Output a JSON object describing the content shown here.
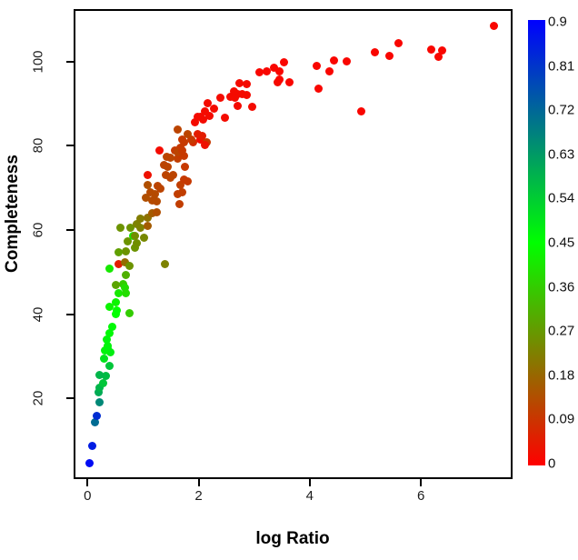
{
  "chart_data": {
    "type": "scatter",
    "title": "",
    "xlabel": "log Ratio",
    "ylabel": "Completeness",
    "xlim": [
      -0.25,
      7.65
    ],
    "ylim": [
      0.8,
      112.5
    ],
    "x_ticks": [
      "0",
      "2",
      "4",
      "6"
    ],
    "x_tick_values": [
      0,
      2,
      4,
      6
    ],
    "y_ticks": [
      "20",
      "40",
      "60",
      "80",
      "100"
    ],
    "y_tick_values": [
      20,
      40,
      60,
      80,
      100
    ],
    "grid": false,
    "legend_position": "right-colorbar",
    "point_format": [
      "log_ratio_x",
      "completeness_y",
      "colorbar_value"
    ],
    "points": [
      [
        0.03,
        4.5,
        0.88
      ],
      [
        0.08,
        8.6,
        0.85
      ],
      [
        0.13,
        14.2,
        0.71
      ],
      [
        0.16,
        15.8,
        0.82
      ],
      [
        0.21,
        19.0,
        0.66
      ],
      [
        0.2,
        21.5,
        0.6
      ],
      [
        0.21,
        22.6,
        0.58
      ],
      [
        0.28,
        23.7,
        0.55
      ],
      [
        0.33,
        25.4,
        0.57
      ],
      [
        0.21,
        25.6,
        0.58
      ],
      [
        0.39,
        27.6,
        0.55
      ],
      [
        0.29,
        29.5,
        0.5
      ],
      [
        0.42,
        31.0,
        0.48
      ],
      [
        0.36,
        31.9,
        0.48
      ],
      [
        0.31,
        31.4,
        0.47
      ],
      [
        0.36,
        32.5,
        0.47
      ],
      [
        0.34,
        34.0,
        0.47
      ],
      [
        0.39,
        35.4,
        0.46
      ],
      [
        0.44,
        36.9,
        0.46
      ],
      [
        0.51,
        40.1,
        0.45
      ],
      [
        0.52,
        40.8,
        0.45
      ],
      [
        0.75,
        40.3,
        0.36
      ],
      [
        0.39,
        41.8,
        0.43
      ],
      [
        0.51,
        42.9,
        0.43
      ],
      [
        0.56,
        44.9,
        0.41
      ],
      [
        0.69,
        44.9,
        0.39
      ],
      [
        0.64,
        47.2,
        0.36
      ],
      [
        0.67,
        46.2,
        0.39
      ],
      [
        0.51,
        47.0,
        0.29
      ],
      [
        0.69,
        49.4,
        0.31
      ],
      [
        0.39,
        50.9,
        0.41
      ],
      [
        0.56,
        51.8,
        0.05
      ],
      [
        0.67,
        52.4,
        0.19
      ],
      [
        0.75,
        51.4,
        0.26
      ],
      [
        1.39,
        51.8,
        0.23
      ],
      [
        0.85,
        55.7,
        0.26
      ],
      [
        0.69,
        55.0,
        0.26
      ],
      [
        0.56,
        54.6,
        0.28
      ],
      [
        0.88,
        56.8,
        0.25
      ],
      [
        0.72,
        57.4,
        0.26
      ],
      [
        0.82,
        58.5,
        0.4
      ],
      [
        0.85,
        58.5,
        0.25
      ],
      [
        1.01,
        58.1,
        0.24
      ],
      [
        0.6,
        60.6,
        0.26
      ],
      [
        0.77,
        60.6,
        0.26
      ],
      [
        0.96,
        60.6,
        0.23
      ],
      [
        1.09,
        60.9,
        0.16
      ],
      [
        0.88,
        61.3,
        0.23
      ],
      [
        0.96,
        62.8,
        0.22
      ],
      [
        1.09,
        63.0,
        0.2
      ],
      [
        1.16,
        63.9,
        0.16
      ],
      [
        1.24,
        64.3,
        0.14
      ],
      [
        1.65,
        66.1,
        0.11
      ],
      [
        1.24,
        66.7,
        0.13
      ],
      [
        1.16,
        67.1,
        0.13
      ],
      [
        1.05,
        67.6,
        0.14
      ],
      [
        1.21,
        68.6,
        0.13
      ],
      [
        1.13,
        68.9,
        0.13
      ],
      [
        1.7,
        68.9,
        0.11
      ],
      [
        1.63,
        68.6,
        0.11
      ],
      [
        1.32,
        69.9,
        0.12
      ],
      [
        1.26,
        70.4,
        0.12
      ],
      [
        1.08,
        70.8,
        0.14
      ],
      [
        1.68,
        70.8,
        0.11
      ],
      [
        1.81,
        71.5,
        0.1
      ],
      [
        1.73,
        71.9,
        0.1
      ],
      [
        1.49,
        72.5,
        0.12
      ],
      [
        1.41,
        73.0,
        0.12
      ],
      [
        1.54,
        73.0,
        0.12
      ],
      [
        1.09,
        73.0,
        0.03
      ],
      [
        1.45,
        75.1,
        0.12
      ],
      [
        1.75,
        75.1,
        0.1
      ],
      [
        1.37,
        75.4,
        0.12
      ],
      [
        1.62,
        76.9,
        0.11
      ],
      [
        1.5,
        77.1,
        0.12
      ],
      [
        1.42,
        77.3,
        0.12
      ],
      [
        1.73,
        77.5,
        0.1
      ],
      [
        1.67,
        77.9,
        0.1
      ],
      [
        1.29,
        79.0,
        0.02
      ],
      [
        1.67,
        79.5,
        0.1
      ],
      [
        1.57,
        78.8,
        0.1
      ],
      [
        1.62,
        78.4,
        0.12
      ],
      [
        1.7,
        79.0,
        0.1
      ],
      [
        1.9,
        80.8,
        0.08
      ],
      [
        2.03,
        81.6,
        0.02
      ],
      [
        2.14,
        80.8,
        0.1
      ],
      [
        1.7,
        81.4,
        0.1
      ],
      [
        2.11,
        80.1,
        0.03
      ],
      [
        1.86,
        81.6,
        0.1
      ],
      [
        1.73,
        80.8,
        0.1
      ],
      [
        2.06,
        82.3,
        0.05
      ],
      [
        1.98,
        82.9,
        0.05
      ],
      [
        1.81,
        82.9,
        0.12
      ],
      [
        1.62,
        83.8,
        0.12
      ],
      [
        1.94,
        85.5,
        0.02
      ],
      [
        2.08,
        86.2,
        0.02
      ],
      [
        2.03,
        87.0,
        0.02
      ],
      [
        1.98,
        87.0,
        0.02
      ],
      [
        2.19,
        87.2,
        0.02
      ],
      [
        2.47,
        86.6,
        0.02
      ],
      [
        2.11,
        88.1,
        0.02
      ],
      [
        2.27,
        88.8,
        0.02
      ],
      [
        2.16,
        90.1,
        0.02
      ],
      [
        2.71,
        89.4,
        0.02
      ],
      [
        2.97,
        89.2,
        0.02
      ],
      [
        2.39,
        91.4,
        0.02
      ],
      [
        2.65,
        91.4,
        0.02
      ],
      [
        2.57,
        91.6,
        0.02
      ],
      [
        2.86,
        92.0,
        0.02
      ],
      [
        2.71,
        92.4,
        0.02
      ],
      [
        2.79,
        92.4,
        0.02
      ],
      [
        2.63,
        92.9,
        0.02
      ],
      [
        2.73,
        94.8,
        0.02
      ],
      [
        2.86,
        94.6,
        0.02
      ],
      [
        3.42,
        95.2,
        0.02
      ],
      [
        3.45,
        95.7,
        0.01
      ],
      [
        3.63,
        95.0,
        0.01
      ],
      [
        3.1,
        97.4,
        0.01
      ],
      [
        3.22,
        97.6,
        0.01
      ],
      [
        3.46,
        97.8,
        0.01
      ],
      [
        3.35,
        98.5,
        0.01
      ],
      [
        3.53,
        99.8,
        0.01
      ],
      [
        4.12,
        99.1,
        0.01
      ],
      [
        4.35,
        97.8,
        0.01
      ],
      [
        4.15,
        93.7,
        0.01
      ],
      [
        4.43,
        100.4,
        0.01
      ],
      [
        4.67,
        100.0,
        0.01
      ],
      [
        4.93,
        88.3,
        0.01
      ],
      [
        5.18,
        102.2,
        0.01
      ],
      [
        5.44,
        101.3,
        0.01
      ],
      [
        5.6,
        104.3,
        0.01
      ],
      [
        6.18,
        102.8,
        0.01
      ],
      [
        6.39,
        102.6,
        0.01
      ],
      [
        6.31,
        101.1,
        0.01
      ],
      [
        7.32,
        108.4,
        0.01
      ]
    ],
    "colorbar": {
      "min": 0,
      "max": 0.9,
      "tick_labels": [
        "0.9",
        "0.81",
        "0.72",
        "0.63",
        "0.54",
        "0.45",
        "0.36",
        "0.27",
        "0.18",
        "0.09",
        "0"
      ],
      "tick_values": [
        0.9,
        0.81,
        0.72,
        0.63,
        0.54,
        0.45,
        0.36,
        0.27,
        0.18,
        0.09,
        0
      ],
      "color_low": "#ff0000",
      "color_mid": "#00ff00",
      "color_high": "#0000ff",
      "mid_value": 0.45
    },
    "background": "#ffffff"
  }
}
